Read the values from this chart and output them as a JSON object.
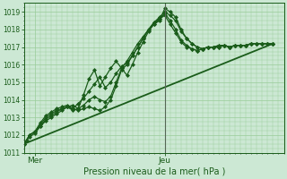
{
  "bg_color": "#cce8d4",
  "grid_color": "#99cc99",
  "line_color": "#1a5c1a",
  "vline_color": "#556655",
  "xlabel": "Pression niveau de la mer( hPa )",
  "ylim": [
    1011,
    1019.5
  ],
  "xlim": [
    0,
    48
  ],
  "ytick_values": [
    1011,
    1012,
    1013,
    1014,
    1015,
    1016,
    1017,
    1018,
    1019
  ],
  "xtick_positions": [
    2,
    26
  ],
  "xtick_labels": [
    "Mer",
    "Jeu"
  ],
  "vline_x": 26,
  "series": [
    {
      "x": [
        0,
        0.5,
        1,
        2,
        3,
        4,
        5,
        6,
        7,
        8,
        9,
        10,
        11,
        12,
        13,
        14,
        15,
        16,
        17,
        18,
        19,
        20,
        21,
        22,
        23,
        24,
        25,
        26,
        27,
        28,
        29,
        30,
        31,
        32,
        33,
        34,
        35,
        36,
        37,
        38,
        39,
        40,
        41,
        42,
        43,
        44,
        45,
        46
      ],
      "y": [
        1011.5,
        1011.7,
        1012.0,
        1012.2,
        1012.5,
        1012.8,
        1013.0,
        1013.2,
        1013.4,
        1013.6,
        1013.5,
        1013.4,
        1013.5,
        1013.6,
        1013.5,
        1013.4,
        1013.6,
        1014.0,
        1014.8,
        1015.7,
        1016.0,
        1016.5,
        1017.0,
        1017.5,
        1018.0,
        1018.3,
        1018.5,
        1019.2,
        1019.0,
        1018.7,
        1018.0,
        1017.5,
        1017.2,
        1017.0,
        1016.9,
        1017.0,
        1017.0,
        1017.1,
        1017.1,
        1017.0,
        1017.1,
        1017.1,
        1017.1,
        1017.2,
        1017.2,
        1017.2,
        1017.2,
        1017.2
      ],
      "marker": "D",
      "markersize": 2.0,
      "linewidth": 0.9
    },
    {
      "x": [
        0,
        1,
        2,
        3,
        4,
        5,
        6,
        7,
        8,
        9,
        10,
        11,
        12,
        13,
        14,
        15,
        16,
        17,
        18,
        19,
        20,
        21,
        22,
        23,
        24,
        25,
        26,
        27,
        28,
        29,
        30,
        31,
        32,
        33,
        34,
        35,
        36,
        37,
        38,
        39,
        40,
        41,
        42,
        43,
        44,
        45,
        46
      ],
      "y": [
        1011.5,
        1012.0,
        1012.2,
        1012.6,
        1013.0,
        1013.2,
        1013.4,
        1013.5,
        1013.6,
        1013.4,
        1013.5,
        1013.7,
        1014.0,
        1014.2,
        1014.0,
        1013.9,
        1014.2,
        1015.0,
        1015.8,
        1016.2,
        1016.7,
        1017.2,
        1017.6,
        1018.0,
        1018.4,
        1018.7,
        1019.0,
        1018.8,
        1018.5,
        1017.9,
        1017.5,
        1017.2,
        1017.0,
        1016.9,
        1017.0,
        1017.0,
        1017.1,
        1017.1,
        1017.0,
        1017.1,
        1017.1,
        1017.1,
        1017.2,
        1017.2,
        1017.2,
        1017.2,
        1017.2
      ],
      "marker": "D",
      "markersize": 2.0,
      "linewidth": 0.9
    },
    {
      "x": [
        0,
        1,
        2,
        3,
        4,
        5,
        6,
        7,
        8,
        9,
        10,
        11,
        12,
        13,
        14,
        15,
        16,
        17,
        18,
        19,
        20,
        21,
        22,
        23,
        24,
        25,
        26,
        27,
        28,
        29,
        30,
        31,
        32,
        33,
        34,
        35,
        36,
        37,
        38,
        39,
        40,
        41,
        42,
        43,
        44,
        45,
        46
      ],
      "y": [
        1011.5,
        1011.9,
        1012.1,
        1012.5,
        1012.9,
        1013.1,
        1013.3,
        1013.5,
        1013.6,
        1013.7,
        1013.5,
        1014.3,
        1015.2,
        1015.7,
        1014.8,
        1015.3,
        1015.8,
        1016.2,
        1015.8,
        1015.4,
        1016.0,
        1016.7,
        1017.3,
        1017.9,
        1018.3,
        1018.6,
        1018.9,
        1018.5,
        1018.0,
        1017.4,
        1017.1,
        1016.9,
        1016.8,
        1016.9,
        1017.0,
        1017.0,
        1017.0,
        1017.1,
        1017.0,
        1017.1,
        1017.1,
        1017.1,
        1017.2,
        1017.2,
        1017.2,
        1017.2,
        1017.2
      ],
      "marker": "D",
      "markersize": 2.0,
      "linewidth": 0.9
    },
    {
      "x": [
        0,
        1,
        2,
        3,
        4,
        5,
        6,
        7,
        8,
        9,
        10,
        11,
        12,
        13,
        14,
        15,
        16,
        17,
        18,
        19,
        20,
        21,
        22,
        23,
        24,
        25,
        26,
        27,
        28,
        29,
        30,
        31,
        32,
        33,
        34,
        35,
        36,
        37,
        38,
        39,
        40,
        41,
        42,
        43,
        44,
        45,
        46
      ],
      "y": [
        1011.5,
        1012.0,
        1012.2,
        1012.7,
        1013.1,
        1013.3,
        1013.5,
        1013.6,
        1013.7,
        1013.5,
        1013.8,
        1014.1,
        1014.5,
        1014.9,
        1015.3,
        1014.7,
        1015.0,
        1015.5,
        1015.9,
        1016.1,
        1016.5,
        1017.0,
        1017.5,
        1018.0,
        1018.4,
        1018.6,
        1018.8,
        1018.3,
        1017.8,
        1017.3,
        1017.0,
        1016.9,
        1016.8,
        1016.9,
        1017.0,
        1017.0,
        1017.0,
        1017.1,
        1017.0,
        1017.1,
        1017.1,
        1017.1,
        1017.2,
        1017.2,
        1017.2,
        1017.2,
        1017.2
      ],
      "marker": "D",
      "markersize": 2.0,
      "linewidth": 0.9
    },
    {
      "x": [
        0,
        46
      ],
      "y": [
        1011.5,
        1017.2
      ],
      "marker": null,
      "linewidth": 1.3,
      "linestyle": "-"
    }
  ]
}
